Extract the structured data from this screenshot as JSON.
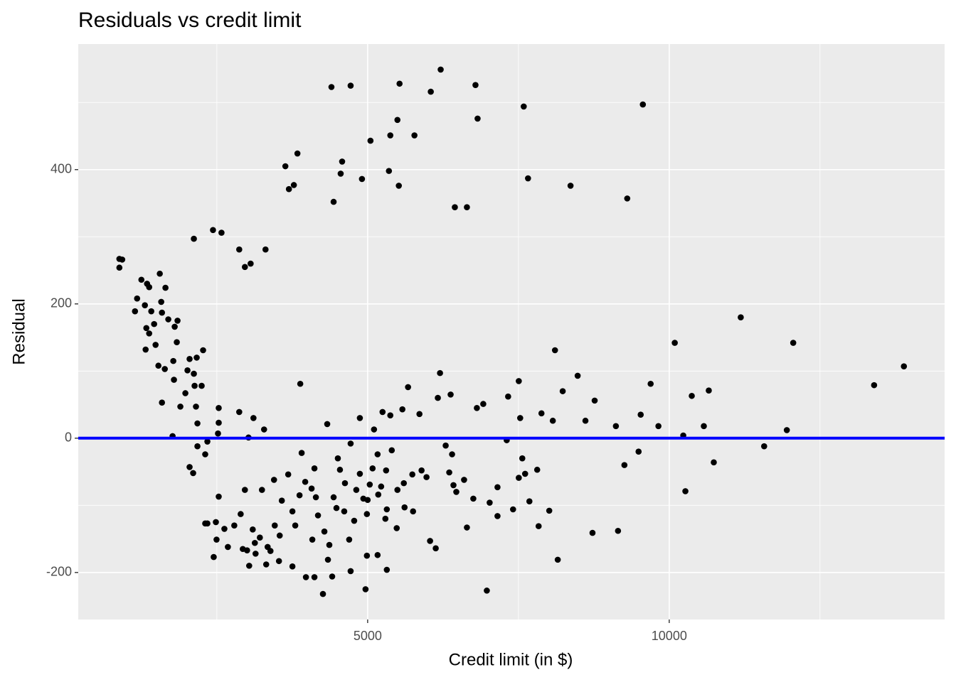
{
  "chart_data": {
    "type": "scatter",
    "title": "Residuals vs credit limit",
    "x_label": "Credit limit (in $)",
    "y_label": "Residual",
    "xlim": [
      202,
      14566
    ],
    "ylim": [
      -270,
      587
    ],
    "xticks": [
      5000,
      10000
    ],
    "yticks": [
      -200,
      0,
      200,
      400
    ],
    "x_minor_grid": [
      2500,
      7500,
      12500
    ],
    "y_minor_grid": [
      -100,
      100,
      300,
      500
    ],
    "grid": true,
    "color": "#000000",
    "hline": 0,
    "hline_color": "#0000ff",
    "x": [
      884,
      884,
      931,
      2119,
      2436,
      2577,
      2871,
      2965,
      3060,
      3307,
      3636,
      3695,
      3777,
      3836,
      4400,
      4436,
      4553,
      4577,
      4718,
      4906,
      5047,
      5353,
      5376,
      5494,
      5529,
      5517,
      5776,
      6047,
      6211,
      6446,
      6646,
      6788,
      6823,
      7588,
      7659,
      8364,
      9304,
      9563,
      1178,
      1143,
      1249,
      1307,
      1343,
      1378,
      1413,
      1331,
      1378,
      1319,
      1460,
      1484,
      1531,
      1554,
      1578,
      1590,
      1648,
      1695,
      1801,
      1848,
      1836,
      1778,
      1789,
      1637,
      1590,
      1766,
      1895,
      2013,
      1978,
      2048,
      2166,
      2119,
      2131,
      2154,
      2178,
      2248,
      2272,
      2343,
      2307,
      2048,
      2107,
      2178,
      3883,
      2531,
      2531,
      2519,
      2871,
      3107,
      3025,
      3283,
      4330,
      4871,
      5106,
      5247,
      5376,
      5576,
      5670,
      5859,
      6200,
      6164,
      6376,
      6811,
      6917,
      7329,
      7506,
      7529,
      7882,
      8106,
      8070,
      8234,
      8482,
      8764,
      8611,
      9116,
      9692,
      9527,
      9821,
      10092,
      10233,
      10374,
      10574,
      10656,
      11186,
      11950,
      12056,
      13397,
      13891,
      10739,
      11574,
      10268,
      9492,
      9257,
      9151,
      8728,
      8152,
      8011,
      7811,
      7835,
      7682,
      7611,
      7564,
      7506,
      7306,
      7411,
      7153,
      7153,
      7023,
      6976,
      6646,
      6752,
      6599,
      6470,
      6400,
      6423,
      6353,
      6294,
      6129,
      6035,
      5976,
      5894,
      5753,
      5612,
      5482,
      5294,
      5318,
      5165,
      4965,
      4988,
      4718,
      4694,
      4612,
      4812,
      4929,
      4777,
      4506,
      4436,
      4365,
      4412,
      4259,
      4342,
      4118,
      3977,
      4083,
      4177,
      4071,
      4118,
      3906,
      3753,
      3683,
      3753,
      3530,
      3460,
      3342,
      3318,
      3248,
      3448,
      3577,
      3036,
      2965,
      2895,
      2789,
      2683,
      2625,
      2531,
      2484,
      2448,
      2343,
      2307,
      2495,
      2930,
      3130,
      3142,
      3095,
      3001,
      3213,
      3389,
      3542,
      3871,
      3965,
      3800,
      4142,
      4283,
      4483,
      4624,
      4541,
      4718,
      4871,
      5000,
      5082,
      5176,
      5306,
      5400,
      5165,
      4988,
      5318,
      5494,
      5600,
      5741,
      5224,
      5035
    ],
    "values": [
      267,
      254,
      266,
      297,
      310,
      306,
      281,
      255,
      260,
      281,
      405,
      371,
      377,
      424,
      523,
      352,
      394,
      412,
      525,
      386,
      443,
      398,
      451,
      474,
      528,
      376,
      451,
      516,
      549,
      344,
      344,
      526,
      476,
      494,
      387,
      376,
      357,
      497,
      208,
      189,
      236,
      198,
      230,
      225,
      189,
      164,
      156,
      132,
      170,
      139,
      108,
      245,
      203,
      187,
      224,
      177,
      166,
      175,
      143,
      115,
      87,
      103,
      53,
      3,
      47,
      101,
      67,
      118,
      120,
      96,
      78,
      47,
      22,
      78,
      131,
      -5,
      -24,
      -43,
      -52,
      -12,
      81,
      45,
      23,
      7,
      39,
      30,
      1,
      13,
      21,
      30,
      13,
      39,
      34,
      43,
      76,
      36,
      97,
      60,
      65,
      45,
      51,
      62,
      85,
      30,
      37,
      131,
      26,
      70,
      93,
      56,
      26,
      18,
      81,
      35,
      18,
      142,
      4,
      63,
      18,
      71,
      180,
      12,
      142,
      79,
      107,
      -36,
      -12,
      -79,
      -20,
      -40,
      -138,
      -141,
      -181,
      -108,
      -47,
      -131,
      -94,
      -53,
      -30,
      -59,
      -3,
      -106,
      -73,
      -116,
      -96,
      -227,
      -133,
      -90,
      -62,
      -80,
      -24,
      -70,
      -51,
      -11,
      -164,
      -153,
      -58,
      -48,
      -109,
      -103,
      -134,
      -120,
      -196,
      -174,
      -225,
      -175,
      -198,
      -151,
      -109,
      -77,
      -90,
      -123,
      -30,
      -88,
      -159,
      -206,
      -232,
      -181,
      -207,
      -207,
      -151,
      -115,
      -75,
      -45,
      -22,
      -109,
      -54,
      -191,
      -183,
      -130,
      -162,
      -188,
      -77,
      -62,
      -93,
      -190,
      -77,
      -113,
      -130,
      -162,
      -135,
      -87,
      -125,
      -177,
      -127,
      -127,
      -151,
      -165,
      -156,
      -172,
      -136,
      -167,
      -148,
      -168,
      -145,
      -85,
      -65,
      -130,
      -88,
      -139,
      -104,
      -67,
      -47,
      -8,
      -53,
      -92,
      -45,
      -84,
      -48,
      -18,
      -24,
      -113,
      -106,
      -77,
      -67,
      -54,
      -72,
      -69
    ]
  }
}
